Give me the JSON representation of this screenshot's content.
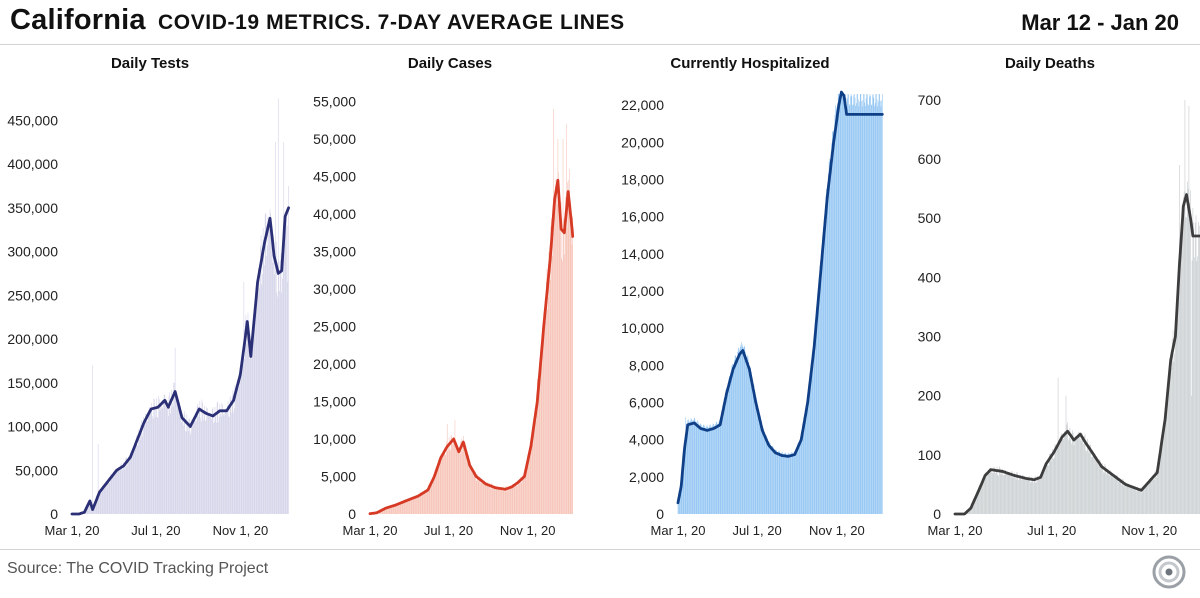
{
  "header": {
    "state": "California",
    "subtitle": "COVID-19 METRICS. 7-DAY AVERAGE LINES",
    "date_range": "Mar 12 - Jan 20"
  },
  "footer": {
    "source": "Source: The COVID Tracking Project",
    "logo_icon": "covid-tracking-project-logo-icon"
  },
  "chart_data": [
    {
      "type": "bar",
      "title": "Daily Tests",
      "xlabel": "",
      "ylabel": "",
      "x_ticks": [
        "Mar 1, 20",
        "Jul 1, 20",
        "Nov 1, 20"
      ],
      "y_ticks": [
        "0",
        "50,000",
        "100,000",
        "150,000",
        "200,000",
        "250,000",
        "300,000",
        "350,000",
        "400,000",
        "450,000"
      ],
      "ylim": [
        0,
        480000
      ],
      "bar_color": "#d3d3e9",
      "line_color": "#2b2f75",
      "bar_series": "Daily value",
      "line_series": "7-day average",
      "days": 315,
      "x_domain": [
        0,
        320
      ],
      "x_tick_days": [
        0,
        122,
        245
      ],
      "y_tick_values": [
        0,
        50000,
        100000,
        150000,
        200000,
        250000,
        300000,
        350000,
        400000,
        450000
      ],
      "avg_keypoints": [
        [
          0,
          0
        ],
        [
          10,
          0
        ],
        [
          18,
          2000
        ],
        [
          26,
          15000
        ],
        [
          30,
          5000
        ],
        [
          40,
          25000
        ],
        [
          55,
          40000
        ],
        [
          65,
          50000
        ],
        [
          75,
          55000
        ],
        [
          85,
          65000
        ],
        [
          95,
          85000
        ],
        [
          105,
          105000
        ],
        [
          115,
          120000
        ],
        [
          125,
          122000
        ],
        [
          135,
          130000
        ],
        [
          140,
          122000
        ],
        [
          150,
          140000
        ],
        [
          160,
          110000
        ],
        [
          172,
          100000
        ],
        [
          185,
          120000
        ],
        [
          195,
          115000
        ],
        [
          205,
          112000
        ],
        [
          215,
          118000
        ],
        [
          225,
          118000
        ],
        [
          235,
          130000
        ],
        [
          245,
          160000
        ],
        [
          255,
          220000
        ],
        [
          260,
          180000
        ],
        [
          270,
          265000
        ],
        [
          280,
          310000
        ],
        [
          288,
          338000
        ],
        [
          294,
          295000
        ],
        [
          300,
          275000
        ],
        [
          305,
          278000
        ],
        [
          310,
          340000
        ],
        [
          315,
          350000
        ]
      ],
      "spikes": [
        [
          30,
          170000
        ],
        [
          38,
          80000
        ],
        [
          150,
          190000
        ],
        [
          250,
          265000
        ],
        [
          285,
          340000
        ],
        [
          296,
          425000
        ],
        [
          300,
          475000
        ],
        [
          308,
          425000
        ],
        [
          314,
          265000
        ]
      ]
    },
    {
      "type": "bar",
      "title": "Daily Cases",
      "xlabel": "",
      "ylabel": "",
      "x_ticks": [
        "Mar 1, 20",
        "Jul 1, 20",
        "Nov 1, 20"
      ],
      "y_ticks": [
        "0",
        "5,000",
        "10,000",
        "15,000",
        "20,000",
        "25,000",
        "30,000",
        "35,000",
        "40,000",
        "45,000",
        "50,000",
        "55,000"
      ],
      "ylim": [
        0,
        56000
      ],
      "bar_color": "#f6c0b4",
      "line_color": "#d63a25",
      "bar_series": "Daily value",
      "line_series": "7-day average",
      "days": 315,
      "x_domain": [
        0,
        345
      ],
      "x_tick_days": [
        0,
        122,
        245
      ],
      "y_tick_values": [
        0,
        5000,
        10000,
        15000,
        20000,
        25000,
        30000,
        35000,
        40000,
        45000,
        50000,
        55000
      ],
      "avg_keypoints": [
        [
          0,
          50
        ],
        [
          10,
          150
        ],
        [
          25,
          800
        ],
        [
          40,
          1200
        ],
        [
          60,
          1900
        ],
        [
          75,
          2400
        ],
        [
          90,
          3200
        ],
        [
          100,
          5000
        ],
        [
          110,
          7500
        ],
        [
          120,
          9000
        ],
        [
          130,
          10000
        ],
        [
          138,
          8300
        ],
        [
          145,
          9600
        ],
        [
          155,
          6500
        ],
        [
          165,
          5000
        ],
        [
          180,
          4000
        ],
        [
          195,
          3500
        ],
        [
          210,
          3300
        ],
        [
          220,
          3600
        ],
        [
          230,
          4200
        ],
        [
          240,
          5000
        ],
        [
          250,
          9000
        ],
        [
          260,
          15000
        ],
        [
          270,
          25000
        ],
        [
          280,
          34000
        ],
        [
          287,
          42000
        ],
        [
          292,
          44500
        ],
        [
          297,
          38000
        ],
        [
          302,
          37500
        ],
        [
          308,
          43000
        ],
        [
          314,
          38000
        ],
        [
          318,
          34000
        ]
      ],
      "spikes": [
        [
          120,
          12000
        ],
        [
          132,
          12500
        ],
        [
          260,
          18000
        ],
        [
          285,
          54000
        ],
        [
          292,
          50000
        ],
        [
          300,
          50000
        ],
        [
          305,
          52000
        ],
        [
          310,
          46000
        ],
        [
          316,
          24000
        ]
      ]
    },
    {
      "type": "area",
      "title": "Currently Hospitalized",
      "xlabel": "",
      "ylabel": "",
      "x_ticks": [
        "Mar 1, 20",
        "Jul 1, 20",
        "Nov 1, 20"
      ],
      "y_ticks": [
        "0",
        "2,000",
        "4,000",
        "6,000",
        "8,000",
        "10,000",
        "12,000",
        "14,000",
        "16,000",
        "18,000",
        "20,000",
        "22,000"
      ],
      "ylim": [
        0,
        22600
      ],
      "bar_color": "#8ec3f2",
      "line_color": "#0f3f86",
      "bar_series": "Daily value",
      "line_series": "7-day average",
      "days": 315,
      "x_domain": [
        0,
        330
      ],
      "x_tick_days": [
        0,
        122,
        245
      ],
      "y_tick_values": [
        0,
        2000,
        4000,
        6000,
        8000,
        10000,
        12000,
        14000,
        16000,
        18000,
        20000,
        22000
      ],
      "avg_keypoints": [
        [
          0,
          600
        ],
        [
          5,
          1500
        ],
        [
          10,
          3500
        ],
        [
          15,
          4800
        ],
        [
          25,
          4900
        ],
        [
          35,
          4600
        ],
        [
          45,
          4500
        ],
        [
          55,
          4600
        ],
        [
          65,
          4800
        ],
        [
          75,
          6500
        ],
        [
          85,
          7800
        ],
        [
          95,
          8600
        ],
        [
          100,
          8800
        ],
        [
          110,
          7800
        ],
        [
          120,
          6000
        ],
        [
          130,
          4500
        ],
        [
          140,
          3700
        ],
        [
          150,
          3300
        ],
        [
          160,
          3150
        ],
        [
          170,
          3100
        ],
        [
          180,
          3200
        ],
        [
          190,
          4000
        ],
        [
          200,
          6000
        ],
        [
          210,
          9000
        ],
        [
          220,
          13000
        ],
        [
          230,
          17000
        ],
        [
          240,
          20000
        ],
        [
          248,
          22000
        ],
        [
          252,
          22700
        ],
        [
          256,
          22500
        ],
        [
          260,
          21500
        ]
      ],
      "spikes": [
        [
          12,
          5200
        ],
        [
          96,
          9000
        ],
        [
          250,
          22800
        ]
      ]
    },
    {
      "type": "bar",
      "title": "Daily Deaths",
      "xlabel": "",
      "ylabel": "",
      "x_ticks": [
        "Mar 1, 20",
        "Jul 1, 20",
        "Nov 1, 20"
      ],
      "y_ticks": [
        "0",
        "100",
        "200",
        "300",
        "400",
        "500",
        "600",
        "700"
      ],
      "ylim": [
        0,
        710
      ],
      "bar_color": "#cbd0d2",
      "line_color": "#3d3d3d",
      "bar_series": "Daily value",
      "line_series": "7-day average",
      "days": 315,
      "x_domain": [
        0,
        309
      ],
      "x_tick_days": [
        0,
        122,
        245
      ],
      "y_tick_values": [
        0,
        100,
        200,
        300,
        400,
        500,
        600,
        700
      ],
      "avg_keypoints": [
        [
          0,
          0
        ],
        [
          12,
          0
        ],
        [
          20,
          10
        ],
        [
          30,
          40
        ],
        [
          38,
          65
        ],
        [
          45,
          75
        ],
        [
          60,
          72
        ],
        [
          75,
          65
        ],
        [
          90,
          60
        ],
        [
          100,
          58
        ],
        [
          108,
          62
        ],
        [
          115,
          85
        ],
        [
          125,
          105
        ],
        [
          135,
          130
        ],
        [
          142,
          140
        ],
        [
          150,
          125
        ],
        [
          158,
          135
        ],
        [
          165,
          120
        ],
        [
          175,
          100
        ],
        [
          185,
          80
        ],
        [
          195,
          70
        ],
        [
          205,
          60
        ],
        [
          215,
          50
        ],
        [
          225,
          45
        ],
        [
          235,
          40
        ],
        [
          245,
          55
        ],
        [
          255,
          70
        ],
        [
          265,
          160
        ],
        [
          272,
          260
        ],
        [
          278,
          300
        ],
        [
          283,
          420
        ],
        [
          288,
          520
        ],
        [
          292,
          540
        ],
        [
          297,
          500
        ],
        [
          300,
          470
        ]
      ],
      "spikes": [
        [
          130,
          230
        ],
        [
          140,
          200
        ],
        [
          283,
          590
        ],
        [
          290,
          700
        ],
        [
          295,
          690
        ],
        [
          298,
          200
        ]
      ]
    }
  ]
}
